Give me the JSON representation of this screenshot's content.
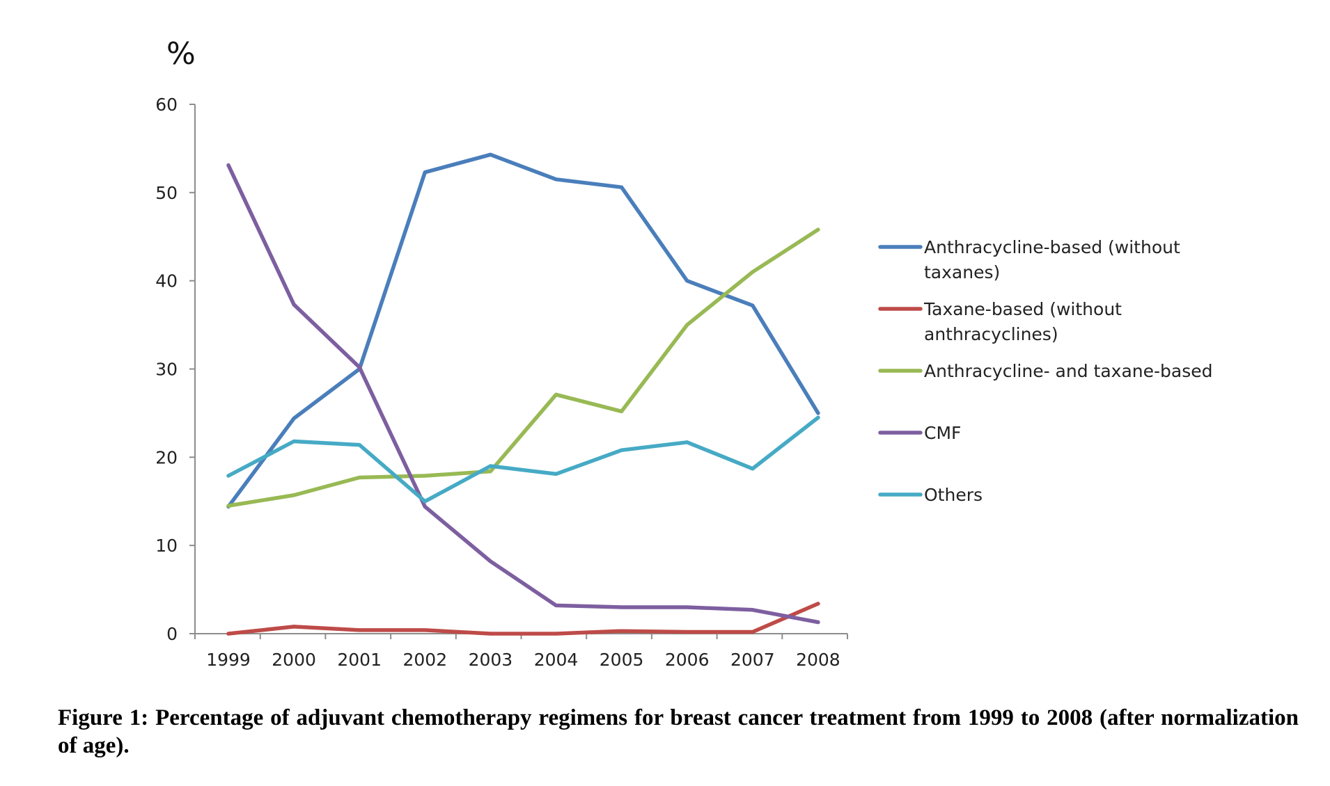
{
  "chart_data": {
    "type": "line",
    "title": "",
    "ylabel": "%",
    "xlabel": "",
    "categories": [
      "1999",
      "2000",
      "2001",
      "2002",
      "2003",
      "2004",
      "2005",
      "2006",
      "2007",
      "2008"
    ],
    "ylim": [
      0,
      60
    ],
    "yticks": [
      0,
      10,
      20,
      30,
      40,
      50,
      60
    ],
    "grid": false,
    "legend_position": "right",
    "series": [
      {
        "name": "Anthracycline-based (without taxanes)",
        "legend_lines": [
          "Anthracycline-based (without",
          "taxanes)"
        ],
        "color": "#4A7EBB",
        "values": [
          14.4,
          24.4,
          30.0,
          52.3,
          54.3,
          51.5,
          50.6,
          40.0,
          37.2,
          25.0
        ]
      },
      {
        "name": "Taxane-based (without anthracyclines)",
        "legend_lines": [
          "Taxane-based (without",
          "anthracyclines)"
        ],
        "color": "#BE4B48",
        "values": [
          0.0,
          0.8,
          0.4,
          0.4,
          0.0,
          0.0,
          0.3,
          0.2,
          0.2,
          3.4
        ]
      },
      {
        "name": "Anthracycline- and taxane-based",
        "legend_lines": [
          "Anthracycline- and taxane-based"
        ],
        "color": "#98B954",
        "values": [
          14.5,
          15.7,
          17.7,
          17.9,
          18.4,
          27.1,
          25.2,
          35.0,
          41.0,
          45.8
        ]
      },
      {
        "name": "CMF",
        "legend_lines": [
          "CMF"
        ],
        "color": "#7D5FA0",
        "values": [
          53.1,
          37.3,
          30.2,
          14.4,
          8.2,
          3.2,
          3.0,
          3.0,
          2.7,
          1.3
        ]
      },
      {
        "name": "Others",
        "legend_lines": [
          "Others"
        ],
        "color": "#46AAC5",
        "values": [
          17.9,
          21.8,
          21.4,
          15.0,
          19.0,
          18.1,
          20.8,
          21.7,
          18.7,
          24.5
        ]
      }
    ]
  },
  "caption": "Figure 1: Percentage of adjuvant chemotherapy regimens for breast cancer treatment from 1999 to 2008 (after normalization of age)."
}
